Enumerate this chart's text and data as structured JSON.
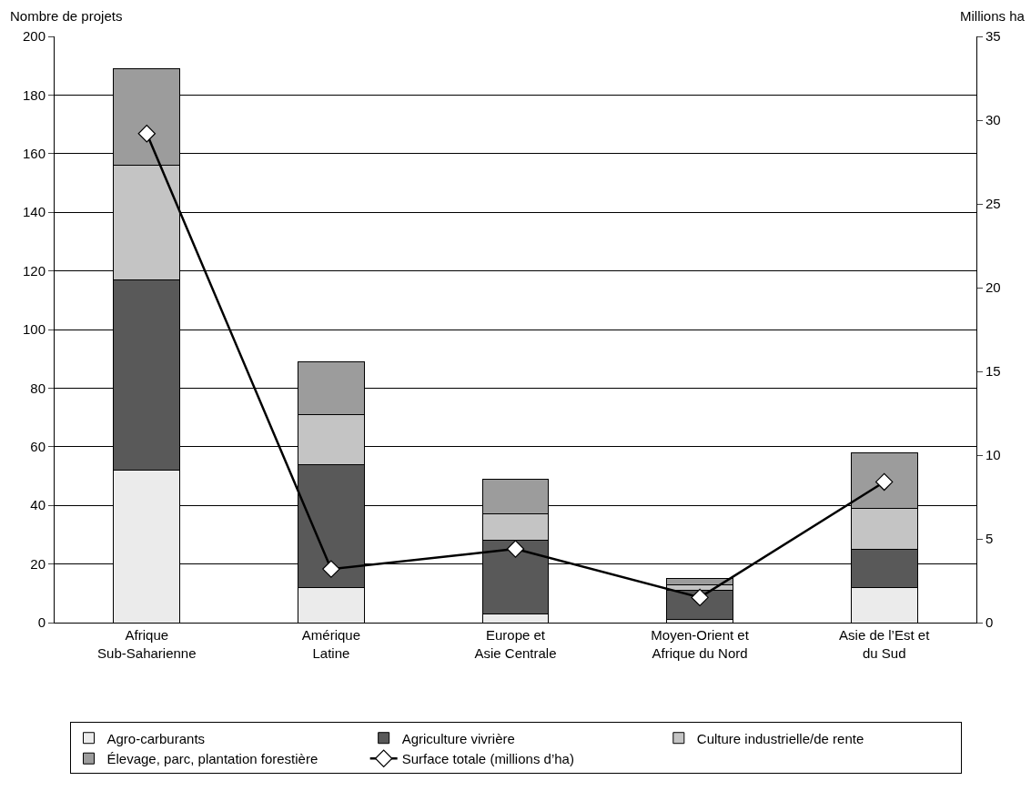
{
  "chart_data": {
    "type": "bar",
    "stacked": true,
    "ylabel": "Nombre de projets",
    "y2label": "Millions ha",
    "categories": [
      "Afrique\nSub-Saharienne",
      "Amérique\nLatine",
      "Europe et\nAsie Centrale",
      "Moyen-Orient et\nAfrique du Nord",
      "Asie de l’Est et\ndu Sud"
    ],
    "series": [
      {
        "name": "Agro-carburants",
        "color": "#ebebeb",
        "values": [
          52,
          12,
          3,
          1,
          12
        ]
      },
      {
        "name": "Agriculture vivrière",
        "color": "#595959",
        "values": [
          65,
          42,
          25,
          10,
          13
        ]
      },
      {
        "name": "Culture industrielle/de rente",
        "color": "#c4c4c4",
        "values": [
          39,
          17,
          9,
          2,
          14
        ]
      },
      {
        "name": "Élevage, parc, plantation forestière",
        "color": "#9c9c9c",
        "values": [
          33,
          18,
          12,
          2,
          19
        ]
      },
      {
        "name": "Surface totale (millions d’ha)",
        "type": "line",
        "axis": "y2",
        "color": "#000000",
        "marker": "diamond",
        "values": [
          29.2,
          3.2,
          4.4,
          1.5,
          8.4
        ]
      }
    ],
    "ylim": [
      0,
      200
    ],
    "yticks": [
      0,
      20,
      40,
      60,
      80,
      100,
      120,
      140,
      160,
      180,
      200
    ],
    "y2lim": [
      0,
      35
    ],
    "y2ticks": [
      0,
      5,
      10,
      15,
      20,
      25,
      30,
      35
    ],
    "grid": "y",
    "legend": "bottom"
  }
}
